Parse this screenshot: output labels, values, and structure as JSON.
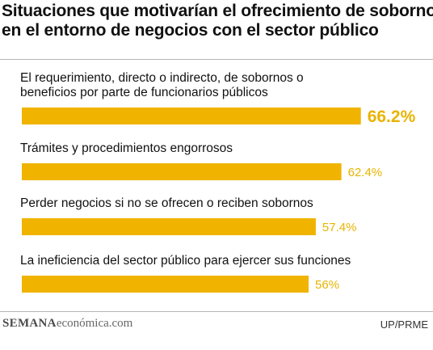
{
  "title_lines": [
    "Situaciones que motivarían el ofrecimiento de sobornos",
    "en el entorno de negocios con el sector público"
  ],
  "chart_data": {
    "type": "bar",
    "orientation": "horizontal",
    "categories": [
      [
        "El requerimiento, directo o indirecto, de sobornos o",
        "beneficios por parte de funcionarios públicos"
      ],
      [
        "Trámites y procedimientos engorrosos"
      ],
      [
        "Perder negocios si no se ofrecen o reciben sobornos"
      ],
      [
        "La ineficiencia del sector público para ejercer sus funciones"
      ]
    ],
    "values": [
      66.2,
      62.4,
      57.4,
      56
    ],
    "value_labels": [
      "66.2%",
      "62.4%",
      "57.4%",
      "56%"
    ],
    "bar_color": "#f0b400",
    "label_color": "#e8b400"
  },
  "footer": {
    "brand_bold": "SEMANA",
    "brand_rest": "económica.com",
    "credit": "UP/PRME"
  }
}
